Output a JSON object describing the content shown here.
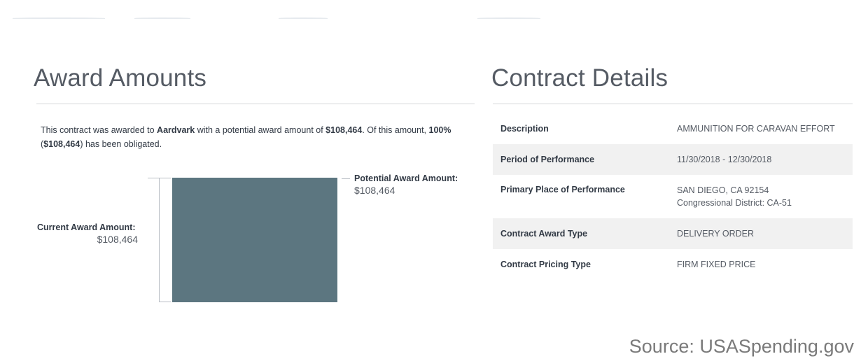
{
  "award_amounts": {
    "title": "Award Amounts",
    "intro": {
      "t1": "This contract was awarded to ",
      "recipient": "Aardvark",
      "t2": " with a potential award amount of ",
      "potential_amount": "$108,464",
      "t3": ". Of this amount, ",
      "percent": "100%",
      "t4": "(",
      "obligated_amount": "$108,464",
      "t5": ") has been obligated."
    },
    "potential_label": "Potential Award Amount:",
    "potential_value": "$108,464",
    "current_label": "Current Award Amount:",
    "current_value": "$108,464",
    "bar_color": "#5c7680",
    "obligated_fraction": 1.0
  },
  "contract_details": {
    "title": "Contract Details",
    "rows": [
      {
        "label": "Description",
        "value": "AMMUNITION FOR CARAVAN EFFORT"
      },
      {
        "label": "Period of Performance",
        "value": "11/30/2018 - 12/30/2018"
      },
      {
        "label": "Primary Place of Performance",
        "value": "SAN DIEGO, CA 92154",
        "value2": "Congressional District: CA-51"
      },
      {
        "label": "Contract Award Type",
        "value": "DELIVERY ORDER"
      },
      {
        "label": "Contract Pricing Type",
        "value": "FIRM FIXED PRICE"
      }
    ]
  },
  "source": "Source: USASpending.gov"
}
